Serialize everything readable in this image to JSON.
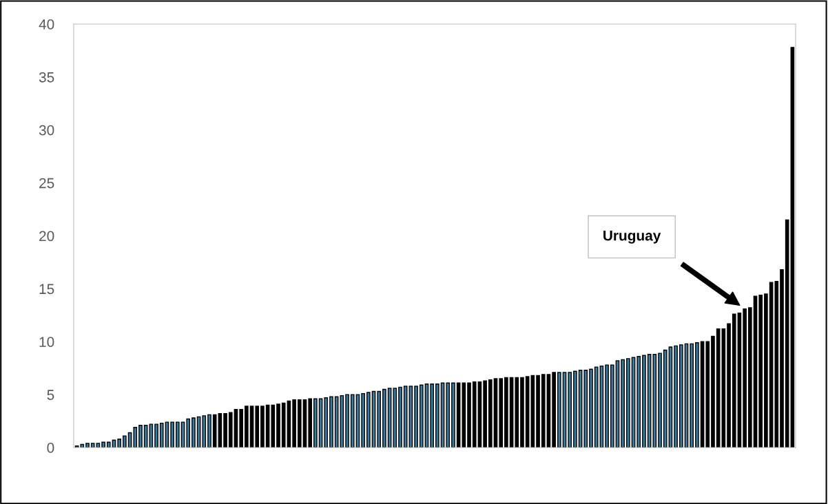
{
  "chart_data": {
    "type": "bar",
    "categories": [
      null,
      null,
      null,
      null,
      null,
      null,
      null,
      null,
      null,
      null,
      null,
      null,
      null,
      null,
      null,
      null,
      null,
      null,
      null,
      null,
      null,
      null,
      null,
      null,
      null,
      null,
      null,
      null,
      null,
      null,
      null,
      null,
      null,
      null,
      null,
      null,
      null,
      null,
      null,
      null,
      null,
      null,
      null,
      null,
      null,
      null,
      null,
      null,
      null,
      null,
      null,
      null,
      null,
      null,
      null,
      null,
      null,
      null,
      null,
      null,
      null,
      null,
      null,
      null,
      null,
      null,
      null,
      null,
      null,
      null,
      null,
      null,
      null,
      null,
      null,
      null,
      null,
      null,
      null,
      null,
      null,
      null,
      null,
      null,
      null,
      null,
      null,
      null,
      null,
      null,
      null,
      null,
      null,
      null,
      null,
      null,
      null,
      null,
      null,
      null,
      null,
      null,
      null,
      null,
      null,
      null,
      null,
      null,
      null,
      null,
      null,
      null,
      null,
      null,
      null,
      null,
      null,
      null,
      null,
      null,
      null,
      null,
      null,
      null,
      null,
      null,
      null,
      null,
      null,
      null,
      null,
      null,
      null,
      null,
      null,
      null
    ],
    "values": [
      0.15,
      0.3,
      0.4,
      0.4,
      0.4,
      0.5,
      0.5,
      0.7,
      0.8,
      1.1,
      1.4,
      1.9,
      2.1,
      2.1,
      2.2,
      2.2,
      2.3,
      2.4,
      2.4,
      2.4,
      2.4,
      2.7,
      2.8,
      2.9,
      3.0,
      3.1,
      3.1,
      3.2,
      3.2,
      3.3,
      3.6,
      3.6,
      3.9,
      3.9,
      3.9,
      3.9,
      4.0,
      4.0,
      4.1,
      4.2,
      4.4,
      4.5,
      4.5,
      4.5,
      4.6,
      4.6,
      4.6,
      4.7,
      4.8,
      4.8,
      4.9,
      5.0,
      5.0,
      5.0,
      5.1,
      5.2,
      5.3,
      5.3,
      5.5,
      5.6,
      5.6,
      5.7,
      5.8,
      5.8,
      5.8,
      5.9,
      6.0,
      6.0,
      6.0,
      6.1,
      6.1,
      6.1,
      6.1,
      6.1,
      6.1,
      6.2,
      6.2,
      6.3,
      6.4,
      6.5,
      6.5,
      6.6,
      6.6,
      6.6,
      6.6,
      6.7,
      6.8,
      6.8,
      6.9,
      6.9,
      7.1,
      7.1,
      7.1,
      7.1,
      7.2,
      7.3,
      7.3,
      7.4,
      7.6,
      7.7,
      7.8,
      7.8,
      8.2,
      8.3,
      8.4,
      8.5,
      8.6,
      8.7,
      8.8,
      8.8,
      8.9,
      9.2,
      9.5,
      9.6,
      9.7,
      9.8,
      9.8,
      9.9,
      10.0,
      10.0,
      10.5,
      11.2,
      11.2,
      11.7,
      12.6,
      12.7,
      13.1,
      13.2,
      14.3,
      14.4,
      14.5,
      15.6,
      15.7,
      16.8,
      21.5,
      37.8
    ],
    "colors": [
      "#3b7ea1",
      "#3b7ea1",
      "#3b7ea1",
      "#3b7ea1",
      "#3b7ea1",
      "#3b7ea1",
      "#3b7ea1",
      "#3b7ea1",
      "#3b7ea1",
      "#3b7ea1",
      "#3b7ea1",
      "#3b7ea1",
      "#3b7ea1",
      "#3b7ea1",
      "#3b7ea1",
      "#3b7ea1",
      "#3b7ea1",
      "#3b7ea1",
      "#3b7ea1",
      "#3b7ea1",
      "#3b7ea1",
      "#3b7ea1",
      "#3b7ea1",
      "#3b7ea1",
      "#3b7ea1",
      "#3b7ea1",
      "#000000",
      "#000000",
      "#000000",
      "#000000",
      "#000000",
      "#000000",
      "#000000",
      "#000000",
      "#000000",
      "#000000",
      "#000000",
      "#000000",
      "#000000",
      "#000000",
      "#000000",
      "#000000",
      "#000000",
      "#000000",
      "#000000",
      "#3b7ea1",
      "#3b7ea1",
      "#3b7ea1",
      "#3b7ea1",
      "#3b7ea1",
      "#3b7ea1",
      "#3b7ea1",
      "#3b7ea1",
      "#3b7ea1",
      "#3b7ea1",
      "#3b7ea1",
      "#3b7ea1",
      "#3b7ea1",
      "#3b7ea1",
      "#3b7ea1",
      "#3b7ea1",
      "#3b7ea1",
      "#3b7ea1",
      "#3b7ea1",
      "#3b7ea1",
      "#3b7ea1",
      "#3b7ea1",
      "#3b7ea1",
      "#3b7ea1",
      "#3b7ea1",
      "#3b7ea1",
      "#3b7ea1",
      "#000000",
      "#000000",
      "#000000",
      "#000000",
      "#000000",
      "#000000",
      "#000000",
      "#000000",
      "#000000",
      "#000000",
      "#000000",
      "#000000",
      "#000000",
      "#000000",
      "#000000",
      "#000000",
      "#000000",
      "#000000",
      "#000000",
      "#3b7ea1",
      "#3b7ea1",
      "#3b7ea1",
      "#3b7ea1",
      "#3b7ea1",
      "#3b7ea1",
      "#3b7ea1",
      "#3b7ea1",
      "#3b7ea1",
      "#3b7ea1",
      "#3b7ea1",
      "#3b7ea1",
      "#3b7ea1",
      "#3b7ea1",
      "#3b7ea1",
      "#3b7ea1",
      "#3b7ea1",
      "#3b7ea1",
      "#3b7ea1",
      "#3b7ea1",
      "#3b7ea1",
      "#3b7ea1",
      "#3b7ea1",
      "#3b7ea1",
      "#3b7ea1",
      "#3b7ea1",
      "#3b7ea1",
      "#000000",
      "#000000",
      "#000000",
      "#000000",
      "#000000",
      "#000000",
      "#000000",
      "#000000",
      "#000000",
      "#000000",
      "#000000",
      "#000000",
      "#000000",
      "#000000",
      "#000000",
      "#000000",
      "#000000",
      "#000000"
    ],
    "ylim": [
      0,
      40
    ],
    "yticks": [
      0,
      5,
      10,
      15,
      20,
      25,
      30,
      35,
      40
    ],
    "grid": false,
    "annotations": [
      "Uruguay"
    ]
  }
}
